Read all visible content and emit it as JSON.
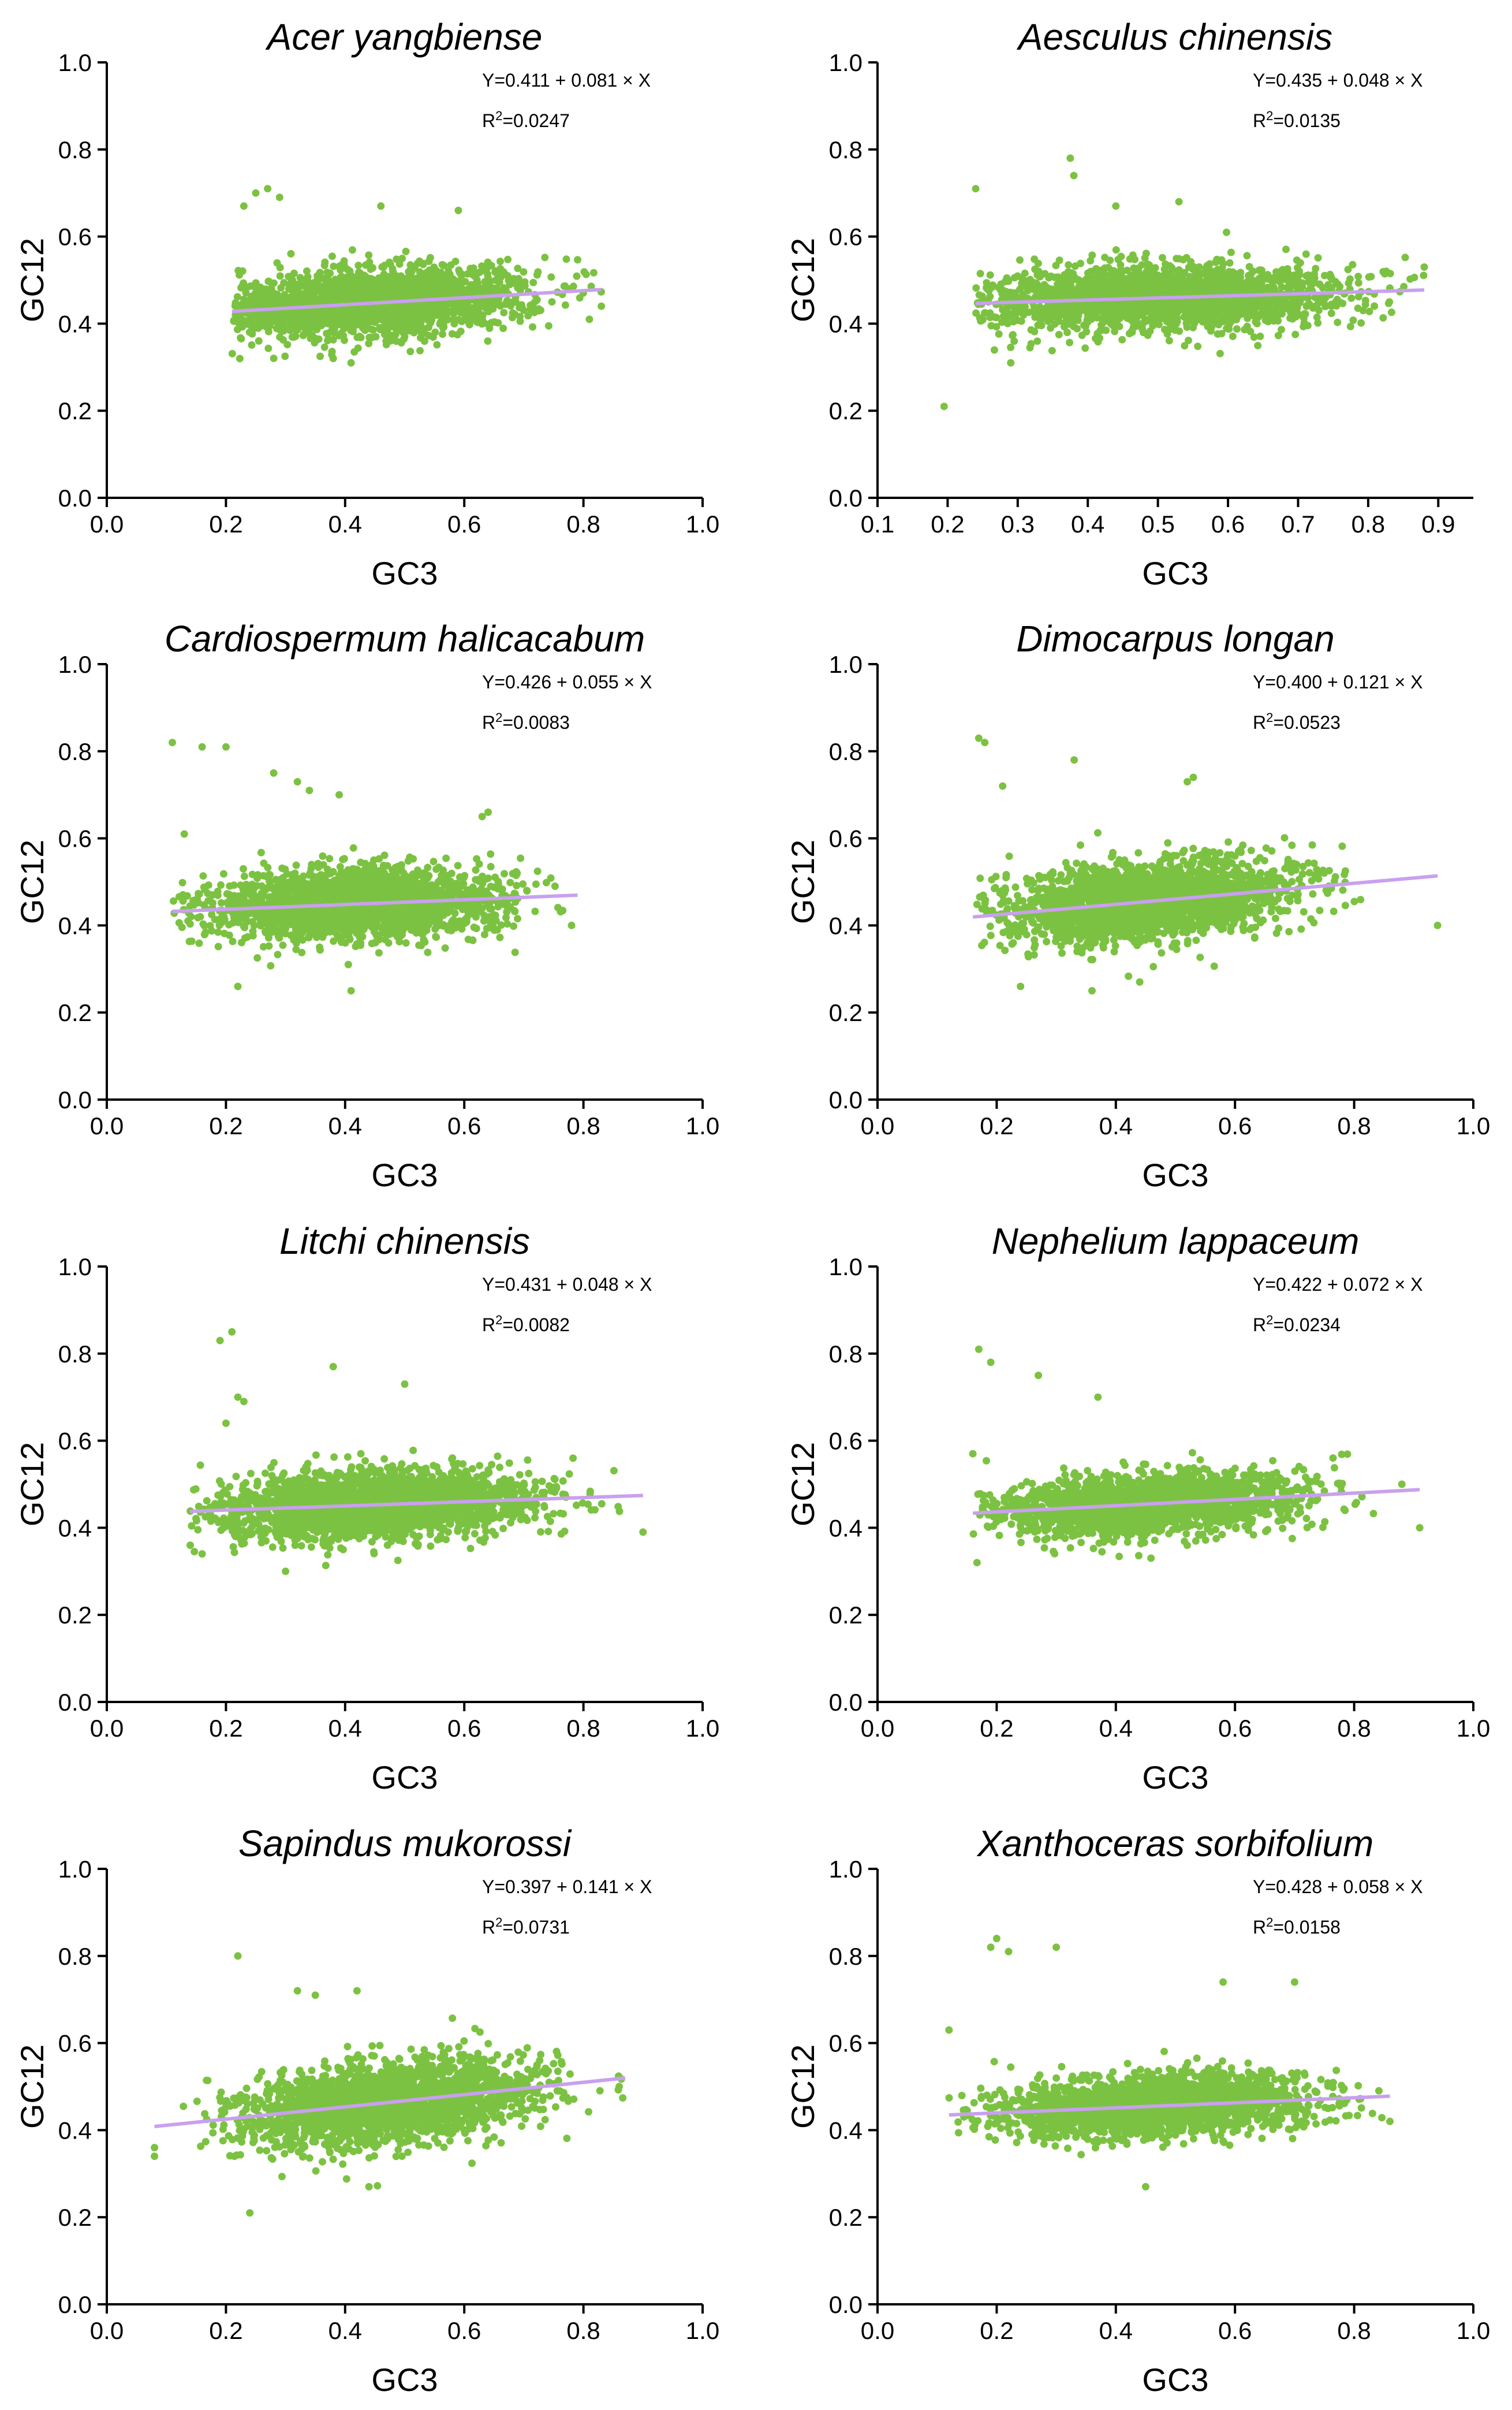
{
  "colors": {
    "points": "#7cc242",
    "fit": "#c9a0ef",
    "axis": "#000000"
  },
  "chart_data": [
    {
      "type": "scatter",
      "title": "Acer yangbiense",
      "xlabel": "GC3",
      "ylabel": "GC12",
      "xlim": [
        0.0,
        1.0
      ],
      "ylim": [
        0.0,
        1.0
      ],
      "xticks": [
        "0.0",
        "0.2",
        "0.4",
        "0.6",
        "0.8",
        "1.0"
      ],
      "yticks": [
        "0.0",
        "0.2",
        "0.4",
        "0.6",
        "0.8",
        "1.0"
      ],
      "equation": "Y=0.411 + 0.081 × X",
      "r2": "0.0247",
      "intercept": 0.411,
      "slope": 0.081,
      "cloud": {
        "x_range": [
          0.21,
          0.83
        ],
        "x_center": 0.45,
        "x_sd": 0.13,
        "y_sd": 0.038
      },
      "outliers": [
        [
          0.25,
          0.7
        ],
        [
          0.27,
          0.71
        ],
        [
          0.29,
          0.69
        ],
        [
          0.23,
          0.67
        ],
        [
          0.46,
          0.67
        ],
        [
          0.59,
          0.66
        ],
        [
          0.38,
          0.32
        ],
        [
          0.41,
          0.31
        ],
        [
          0.81,
          0.41
        ],
        [
          0.83,
          0.44
        ]
      ]
    },
    {
      "type": "scatter",
      "title": "Aesculus chinensis",
      "xlabel": "GC3",
      "ylabel": "GC12",
      "xlim": [
        0.1,
        0.95
      ],
      "ylim": [
        0.0,
        1.0
      ],
      "xticks": [
        "0.1",
        "0.2",
        "0.3",
        "0.4",
        "0.5",
        "0.6",
        "0.7",
        "0.8",
        "0.9"
      ],
      "yticks": [
        "0.0",
        "0.2",
        "0.4",
        "0.6",
        "0.8",
        "1.0"
      ],
      "equation": "Y=0.435 + 0.048 × X",
      "r2": "0.0135",
      "intercept": 0.435,
      "slope": 0.048,
      "cloud": {
        "x_range": [
          0.24,
          0.88
        ],
        "x_center": 0.5,
        "x_sd": 0.13,
        "y_sd": 0.036
      },
      "outliers": [
        [
          0.195,
          0.21
        ],
        [
          0.24,
          0.71
        ],
        [
          0.375,
          0.78
        ],
        [
          0.38,
          0.74
        ],
        [
          0.53,
          0.68
        ],
        [
          0.44,
          0.67
        ],
        [
          0.29,
          0.31
        ],
        [
          0.88,
          0.53
        ]
      ]
    },
    {
      "type": "scatter",
      "title": "Cardiospermum halicacabum",
      "xlabel": "GC3",
      "ylabel": "GC12",
      "xlim": [
        0.0,
        1.0
      ],
      "ylim": [
        0.0,
        1.0
      ],
      "xticks": [
        "0.0",
        "0.2",
        "0.4",
        "0.6",
        "0.8",
        "1.0"
      ],
      "yticks": [
        "0.0",
        "0.2",
        "0.4",
        "0.6",
        "0.8",
        "1.0"
      ],
      "equation": "Y=0.426 + 0.055 × X",
      "r2": "0.0083",
      "intercept": 0.426,
      "slope": 0.055,
      "cloud": {
        "x_range": [
          0.11,
          0.79
        ],
        "x_center": 0.42,
        "x_sd": 0.12,
        "y_sd": 0.04
      },
      "outliers": [
        [
          0.11,
          0.82
        ],
        [
          0.16,
          0.81
        ],
        [
          0.2,
          0.81
        ],
        [
          0.13,
          0.61
        ],
        [
          0.28,
          0.75
        ],
        [
          0.32,
          0.73
        ],
        [
          0.34,
          0.71
        ],
        [
          0.39,
          0.7
        ],
        [
          0.22,
          0.26
        ],
        [
          0.41,
          0.25
        ],
        [
          0.78,
          0.4
        ],
        [
          0.64,
          0.66
        ],
        [
          0.63,
          0.65
        ]
      ]
    },
    {
      "type": "scatter",
      "title": "Dimocarpus longan",
      "xlabel": "GC3",
      "ylabel": "GC12",
      "xlim": [
        0.0,
        1.0
      ],
      "ylim": [
        0.0,
        1.0
      ],
      "xticks": [
        "0.0",
        "0.2",
        "0.4",
        "0.6",
        "0.8",
        "1.0"
      ],
      "yticks": [
        "0.0",
        "0.2",
        "0.4",
        "0.6",
        "0.8",
        "1.0"
      ],
      "equation": "Y=0.400 + 0.121 × X",
      "r2": "0.0523",
      "intercept": 0.4,
      "slope": 0.121,
      "cloud": {
        "x_range": [
          0.16,
          0.94
        ],
        "x_center": 0.45,
        "x_sd": 0.12,
        "y_sd": 0.045
      },
      "outliers": [
        [
          0.17,
          0.83
        ],
        [
          0.18,
          0.82
        ],
        [
          0.21,
          0.72
        ],
        [
          0.33,
          0.78
        ],
        [
          0.52,
          0.73
        ],
        [
          0.53,
          0.74
        ],
        [
          0.24,
          0.26
        ],
        [
          0.36,
          0.25
        ],
        [
          0.94,
          0.4
        ],
        [
          0.44,
          0.27
        ]
      ]
    },
    {
      "type": "scatter",
      "title": "Litchi chinensis",
      "xlabel": "GC3",
      "ylabel": "GC12",
      "xlim": [
        0.0,
        1.0
      ],
      "ylim": [
        0.0,
        1.0
      ],
      "xticks": [
        "0.0",
        "0.2",
        "0.4",
        "0.6",
        "0.8",
        "1.0"
      ],
      "yticks": [
        "0.0",
        "0.2",
        "0.4",
        "0.6",
        "0.8",
        "1.0"
      ],
      "equation": "Y=0.431 + 0.048 × X",
      "r2": "0.0082",
      "intercept": 0.431,
      "slope": 0.048,
      "cloud": {
        "x_range": [
          0.14,
          0.9
        ],
        "x_center": 0.45,
        "x_sd": 0.13,
        "y_sd": 0.038
      },
      "outliers": [
        [
          0.21,
          0.85
        ],
        [
          0.19,
          0.83
        ],
        [
          0.38,
          0.77
        ],
        [
          0.22,
          0.7
        ],
        [
          0.23,
          0.69
        ],
        [
          0.5,
          0.73
        ],
        [
          0.2,
          0.64
        ],
        [
          0.14,
          0.36
        ],
        [
          0.16,
          0.34
        ],
        [
          0.9,
          0.39
        ],
        [
          0.3,
          0.3
        ]
      ]
    },
    {
      "type": "scatter",
      "title": "Nephelium lappaceum",
      "xlabel": "GC3",
      "ylabel": "GC12",
      "xlim": [
        0.0,
        1.0
      ],
      "ylim": [
        0.0,
        1.0
      ],
      "xticks": [
        "0.0",
        "0.2",
        "0.4",
        "0.6",
        "0.8",
        "1.0"
      ],
      "yticks": [
        "0.0",
        "0.2",
        "0.4",
        "0.6",
        "0.8",
        "1.0"
      ],
      "equation": "Y=0.422 + 0.072 × X",
      "r2": "0.0234",
      "intercept": 0.422,
      "slope": 0.072,
      "cloud": {
        "x_range": [
          0.16,
          0.91
        ],
        "x_center": 0.45,
        "x_sd": 0.12,
        "y_sd": 0.033
      },
      "outliers": [
        [
          0.17,
          0.81
        ],
        [
          0.19,
          0.78
        ],
        [
          0.27,
          0.75
        ],
        [
          0.16,
          0.57
        ],
        [
          0.37,
          0.7
        ],
        [
          0.91,
          0.4
        ],
        [
          0.88,
          0.5
        ]
      ]
    },
    {
      "type": "scatter",
      "title": "Sapindus mukorossi",
      "xlabel": "GC3",
      "ylabel": "GC12",
      "xlim": [
        0.0,
        1.0
      ],
      "ylim": [
        0.0,
        1.0
      ],
      "xticks": [
        "0.0",
        "0.2",
        "0.4",
        "0.6",
        "0.8",
        "1.0"
      ],
      "yticks": [
        "0.0",
        "0.2",
        "0.4",
        "0.6",
        "0.8",
        "1.0"
      ],
      "equation": "Y=0.397 + 0.141 × X",
      "r2": "0.0731",
      "intercept": 0.397,
      "slope": 0.141,
      "cloud": {
        "x_range": [
          0.08,
          0.87
        ],
        "x_center": 0.47,
        "x_sd": 0.12,
        "y_sd": 0.045
      },
      "outliers": [
        [
          0.22,
          0.8
        ],
        [
          0.08,
          0.36
        ],
        [
          0.08,
          0.34
        ],
        [
          0.24,
          0.21
        ],
        [
          0.44,
          0.27
        ],
        [
          0.32,
          0.72
        ],
        [
          0.35,
          0.71
        ],
        [
          0.42,
          0.72
        ],
        [
          0.86,
          0.5
        ]
      ]
    },
    {
      "type": "scatter",
      "title": "Xanthoceras sorbifolium",
      "xlabel": "GC3",
      "ylabel": "GC12",
      "xlim": [
        0.0,
        1.0
      ],
      "ylim": [
        0.0,
        1.0
      ],
      "xticks": [
        "0.0",
        "0.2",
        "0.4",
        "0.6",
        "0.8",
        "1.0"
      ],
      "yticks": [
        "0.0",
        "0.2",
        "0.4",
        "0.6",
        "0.8",
        "1.0"
      ],
      "equation": "Y=0.428 + 0.058 × X",
      "r2": "0.0158",
      "intercept": 0.428,
      "slope": 0.058,
      "cloud": {
        "x_range": [
          0.12,
          0.86
        ],
        "x_center": 0.46,
        "x_sd": 0.13,
        "y_sd": 0.035
      },
      "outliers": [
        [
          0.2,
          0.84
        ],
        [
          0.19,
          0.82
        ],
        [
          0.22,
          0.81
        ],
        [
          0.3,
          0.82
        ],
        [
          0.58,
          0.74
        ],
        [
          0.7,
          0.74
        ],
        [
          0.12,
          0.63
        ],
        [
          0.45,
          0.27
        ],
        [
          0.86,
          0.42
        ]
      ]
    }
  ]
}
